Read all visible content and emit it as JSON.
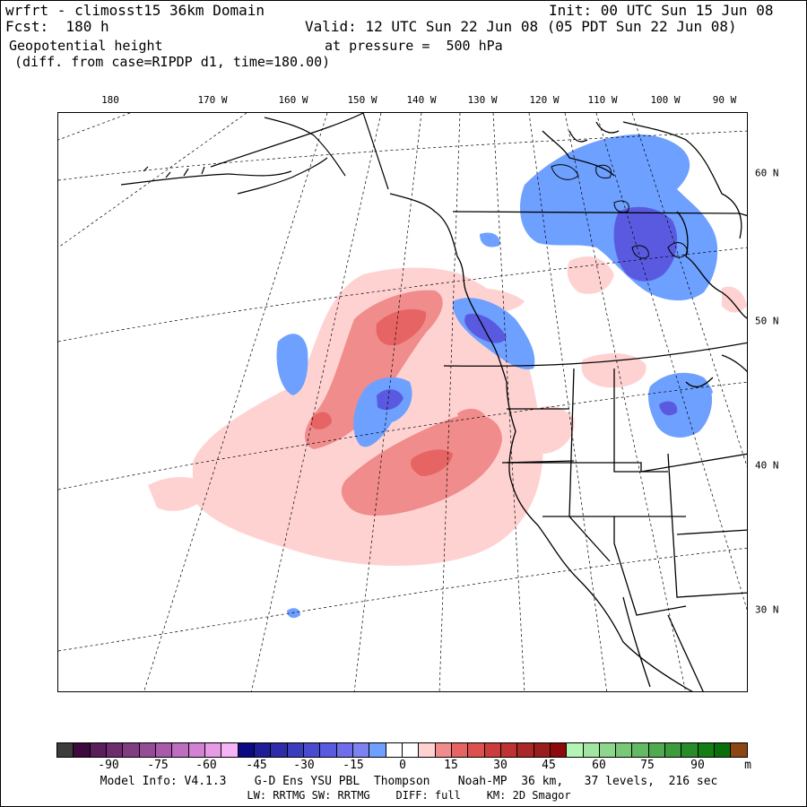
{
  "header": {
    "model_line": "wrfrt - climosst15 36km Domain",
    "init_line": "Init: 00 UTC Sun 15 Jun 08",
    "fcst_line": "Fcst:  180 h",
    "valid_line": "Valid: 12 UTC Sun 22 Jun 08 (05 PDT Sun 22 Jun 08)",
    "field_name": "Geopotential height",
    "level_line": "at pressure =  500 hPa",
    "diff_line": "(diff. from case=RIPDP d1, time=180.00)"
  },
  "longitude_labels": [
    "180",
    "170 W",
    "160 W",
    "150 W",
    "140 W",
    "130 W",
    "120 W",
    "110 W",
    "100 W",
    "90 W"
  ],
  "latitude_labels": [
    "60 N",
    "50 N",
    "40 N",
    "30 N"
  ],
  "colorbar": {
    "colors": [
      "#3c3c3c",
      "#3c0a3c",
      "#5a1e5a",
      "#6e2d6e",
      "#823c82",
      "#964b96",
      "#aa5aaa",
      "#be6ebe",
      "#d282d2",
      "#e69be6",
      "#f5b4f5",
      "#0a0a82",
      "#1e1e96",
      "#2d2daa",
      "#3c3cbe",
      "#4b4bd2",
      "#5a5ae1",
      "#6e6eeb",
      "#7d82f0",
      "#6ea0ff",
      "#ffffff",
      "#ffffff",
      "#ffd2d2",
      "#f08c8c",
      "#e66464",
      "#dc5050",
      "#cd3c3c",
      "#be3232",
      "#aa2828",
      "#9b1e1e",
      "#8c0a0a",
      "#b4f5b4",
      "#a0e6a0",
      "#8cd78c",
      "#78c878",
      "#64b964",
      "#50aa50",
      "#3c9b3c",
      "#288c28",
      "#147d14",
      "#0a6e0a",
      "#8c4614"
    ],
    "labels": [
      "-90",
      "-75",
      "-60",
      "-45",
      "-30",
      "-15",
      "0",
      "15",
      "30",
      "45",
      "60",
      "75",
      "90",
      "m"
    ]
  },
  "footer": {
    "line1": "Model Info: V4.1.3    G-D Ens YSU PBL  Thompson    Noah-MP  36 km,   37 levels,  216 sec",
    "line2": "LW: RRTMG SW: RRTMG    DIFF: full    KM: 2D Smagor"
  }
}
